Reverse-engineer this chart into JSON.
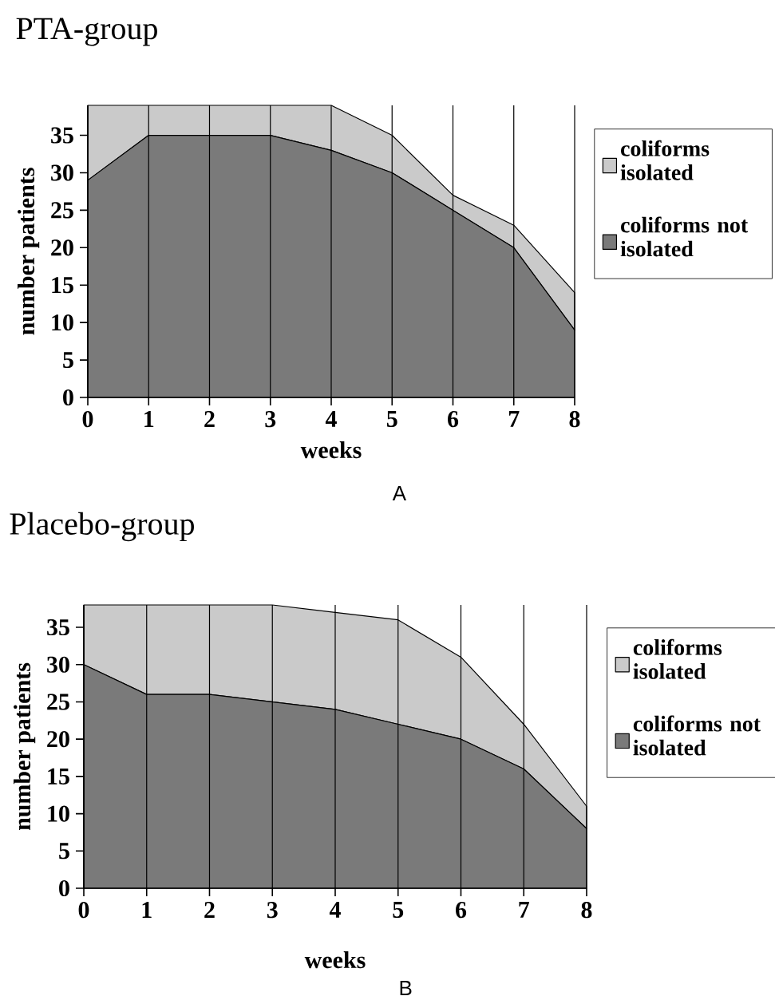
{
  "chart_data": [
    {
      "type": "area",
      "title": "PTA-group",
      "xlabel": "weeks",
      "ylabel": "number  patients",
      "stacked": true,
      "grid": "x",
      "legend": "right",
      "x": [
        0,
        1,
        2,
        3,
        4,
        5,
        6,
        7,
        8
      ],
      "xlim": [
        0,
        8
      ],
      "xticks": [
        0,
        1,
        2,
        3,
        4,
        5,
        6,
        7,
        8
      ],
      "ylim": [
        0,
        39
      ],
      "yticks": [
        0,
        5,
        10,
        15,
        20,
        25,
        30,
        35
      ],
      "annotations": [
        "A"
      ],
      "series": [
        {
          "name": "coliforms not isolated",
          "color": "#7a7a7a",
          "values": [
            29,
            35,
            35,
            35,
            33,
            30,
            25,
            20,
            9
          ]
        },
        {
          "name": "coliforms isolated",
          "color": "#cacaca",
          "values": [
            10,
            4,
            4,
            4,
            6,
            5,
            2,
            3,
            5
          ]
        }
      ]
    },
    {
      "type": "area",
      "title": "Placebo-group",
      "xlabel": "weeks",
      "ylabel": "number  patients",
      "stacked": true,
      "grid": "x",
      "legend": "right",
      "x": [
        0,
        1,
        2,
        3,
        4,
        5,
        6,
        7,
        8
      ],
      "xlim": [
        0,
        8
      ],
      "xticks": [
        0,
        1,
        2,
        3,
        4,
        5,
        6,
        7,
        8
      ],
      "ylim": [
        0,
        38
      ],
      "yticks": [
        0,
        5,
        10,
        15,
        20,
        25,
        30,
        35
      ],
      "annotations": [
        "B"
      ],
      "series": [
        {
          "name": "coliforms not isolated",
          "color": "#7a7a7a",
          "values": [
            30,
            26,
            26,
            25,
            24,
            22,
            20,
            16,
            8
          ]
        },
        {
          "name": "coliforms isolated",
          "color": "#cacaca",
          "values": [
            8,
            12,
            12,
            13,
            13,
            14,
            11,
            6,
            3
          ]
        }
      ]
    }
  ]
}
